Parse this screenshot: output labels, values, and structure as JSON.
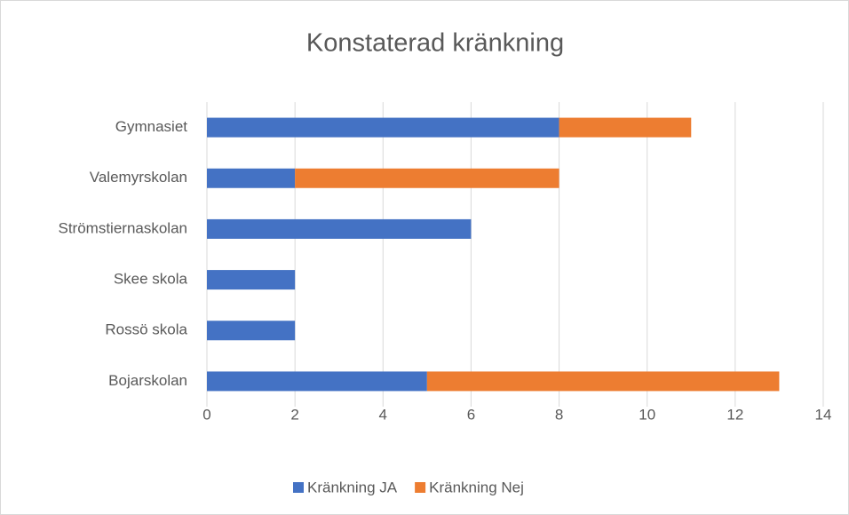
{
  "chart_data": {
    "type": "bar",
    "orientation": "horizontal",
    "stacked": true,
    "title": "Konstaterad kränkning",
    "categories": [
      "Gymnasiet",
      "Valemyrskolan",
      "Strömstiernaskolan",
      "Skee skola",
      "Rossö skola",
      "Bojarskolan"
    ],
    "series": [
      {
        "name": "Kränkning JA",
        "color": "#4472c4",
        "values": [
          8,
          2,
          6,
          2,
          2,
          5
        ]
      },
      {
        "name": "Kränkning Nej",
        "color": "#ed7d31",
        "values": [
          3,
          6,
          0,
          0,
          0,
          8
        ]
      }
    ],
    "xlim": [
      0,
      14
    ],
    "xticks": [
      0,
      2,
      4,
      6,
      8,
      10,
      12,
      14
    ],
    "grid": true,
    "legend": "bottom"
  }
}
